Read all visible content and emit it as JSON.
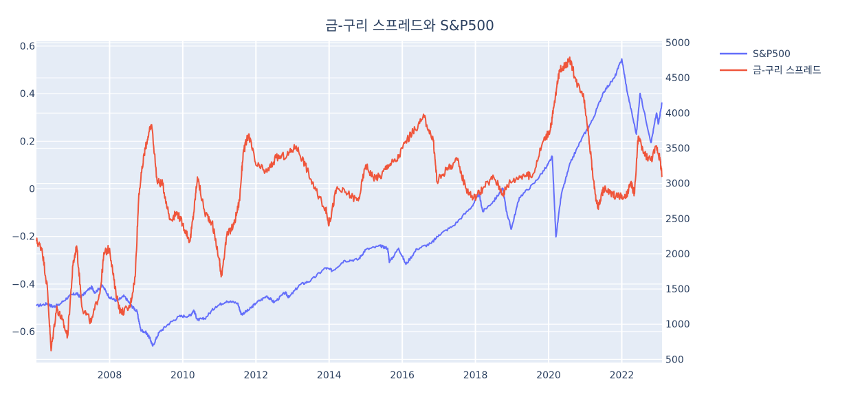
{
  "chart_data": {
    "type": "line",
    "title": "금-구리 스프레드와 S&P500",
    "xlabel": "",
    "ylabel_left": "",
    "ylabel_right": "",
    "x_range": [
      2006.0,
      2023.1
    ],
    "y_left_range": [
      -0.73,
      0.62
    ],
    "y_right_range": [
      455,
      5020
    ],
    "x_ticks": [
      {
        "value": 2008,
        "label": "2008"
      },
      {
        "value": 2010,
        "label": "2010"
      },
      {
        "value": 2012,
        "label": "2012"
      },
      {
        "value": 2014,
        "label": "2014"
      },
      {
        "value": 2016,
        "label": "2016"
      },
      {
        "value": 2018,
        "label": "2018"
      },
      {
        "value": 2020,
        "label": "2020"
      },
      {
        "value": 2022,
        "label": "2022"
      }
    ],
    "y_left_ticks": [
      {
        "value": -0.6,
        "label": "−0.6"
      },
      {
        "value": -0.4,
        "label": "−0.4"
      },
      {
        "value": -0.2,
        "label": "−0.2"
      },
      {
        "value": 0,
        "label": "0"
      },
      {
        "value": 0.2,
        "label": "0.2"
      },
      {
        "value": 0.4,
        "label": "0.4"
      },
      {
        "value": 0.6,
        "label": "0.6"
      }
    ],
    "y_right_ticks": [
      {
        "value": 500,
        "label": "500"
      },
      {
        "value": 1000,
        "label": "1000"
      },
      {
        "value": 1500,
        "label": "1500"
      },
      {
        "value": 2000,
        "label": "2000"
      },
      {
        "value": 2500,
        "label": "2500"
      },
      {
        "value": 3000,
        "label": "3000"
      },
      {
        "value": 3500,
        "label": "3500"
      },
      {
        "value": 4000,
        "label": "4000"
      },
      {
        "value": 4500,
        "label": "4500"
      },
      {
        "value": 5000,
        "label": "5000"
      }
    ],
    "grid": true,
    "legend_position": "top-right-outside",
    "series": [
      {
        "name": "S&P500",
        "axis": "right",
        "color": "#636efa",
        "points": [
          [
            2006.0,
            1260
          ],
          [
            2006.3,
            1290
          ],
          [
            2006.45,
            1250
          ],
          [
            2006.6,
            1270
          ],
          [
            2006.9,
            1400
          ],
          [
            2007.1,
            1440
          ],
          [
            2007.2,
            1380
          ],
          [
            2007.5,
            1530
          ],
          [
            2007.6,
            1450
          ],
          [
            2007.8,
            1550
          ],
          [
            2008.0,
            1380
          ],
          [
            2008.2,
            1330
          ],
          [
            2008.4,
            1400
          ],
          [
            2008.6,
            1260
          ],
          [
            2008.75,
            1180
          ],
          [
            2008.85,
            920
          ],
          [
            2009.0,
            880
          ],
          [
            2009.1,
            800
          ],
          [
            2009.18,
            690
          ],
          [
            2009.35,
            880
          ],
          [
            2009.6,
            1000
          ],
          [
            2009.9,
            1110
          ],
          [
            2010.2,
            1120
          ],
          [
            2010.3,
            1200
          ],
          [
            2010.4,
            1060
          ],
          [
            2010.6,
            1080
          ],
          [
            2010.9,
            1250
          ],
          [
            2011.2,
            1330
          ],
          [
            2011.5,
            1300
          ],
          [
            2011.6,
            1140
          ],
          [
            2011.8,
            1200
          ],
          [
            2012.0,
            1300
          ],
          [
            2012.3,
            1400
          ],
          [
            2012.5,
            1310
          ],
          [
            2012.8,
            1450
          ],
          [
            2012.9,
            1380
          ],
          [
            2013.2,
            1560
          ],
          [
            2013.5,
            1620
          ],
          [
            2013.9,
            1800
          ],
          [
            2014.1,
            1760
          ],
          [
            2014.4,
            1900
          ],
          [
            2014.8,
            1920
          ],
          [
            2015.0,
            2060
          ],
          [
            2015.4,
            2110
          ],
          [
            2015.6,
            2080
          ],
          [
            2015.65,
            1880
          ],
          [
            2015.9,
            2080
          ],
          [
            2016.1,
            1850
          ],
          [
            2016.4,
            2070
          ],
          [
            2016.8,
            2150
          ],
          [
            2017.0,
            2270
          ],
          [
            2017.4,
            2400
          ],
          [
            2017.9,
            2670
          ],
          [
            2018.1,
            2850
          ],
          [
            2018.2,
            2600
          ],
          [
            2018.5,
            2750
          ],
          [
            2018.75,
            2930
          ],
          [
            2018.85,
            2600
          ],
          [
            2018.98,
            2350
          ],
          [
            2019.2,
            2800
          ],
          [
            2019.6,
            3000
          ],
          [
            2019.95,
            3240
          ],
          [
            2020.1,
            3380
          ],
          [
            2020.2,
            2240
          ],
          [
            2020.35,
            2850
          ],
          [
            2020.6,
            3300
          ],
          [
            2020.9,
            3630
          ],
          [
            2021.2,
            3900
          ],
          [
            2021.5,
            4300
          ],
          [
            2021.8,
            4500
          ],
          [
            2022.0,
            4770
          ],
          [
            2022.15,
            4300
          ],
          [
            2022.4,
            3700
          ],
          [
            2022.5,
            4280
          ],
          [
            2022.8,
            3580
          ],
          [
            2022.95,
            4000
          ],
          [
            2023.0,
            3850
          ],
          [
            2023.1,
            4150
          ]
        ]
      },
      {
        "name": "금-구리 스프레드",
        "axis": "left",
        "color": "#ef553b",
        "points": [
          [
            2006.0,
            -0.22
          ],
          [
            2006.15,
            -0.25
          ],
          [
            2006.3,
            -0.42
          ],
          [
            2006.4,
            -0.68
          ],
          [
            2006.55,
            -0.5
          ],
          [
            2006.7,
            -0.55
          ],
          [
            2006.85,
            -0.62
          ],
          [
            2007.0,
            -0.32
          ],
          [
            2007.1,
            -0.24
          ],
          [
            2007.25,
            -0.5
          ],
          [
            2007.5,
            -0.56
          ],
          [
            2007.75,
            -0.42
          ],
          [
            2007.85,
            -0.27
          ],
          [
            2008.0,
            -0.25
          ],
          [
            2008.15,
            -0.42
          ],
          [
            2008.3,
            -0.52
          ],
          [
            2008.55,
            -0.5
          ],
          [
            2008.7,
            -0.37
          ],
          [
            2008.8,
            -0.02
          ],
          [
            2008.95,
            0.15
          ],
          [
            2009.05,
            0.22
          ],
          [
            2009.15,
            0.27
          ],
          [
            2009.3,
            0.03
          ],
          [
            2009.45,
            0.02
          ],
          [
            2009.65,
            -0.13
          ],
          [
            2009.85,
            -0.1
          ],
          [
            2010.0,
            -0.15
          ],
          [
            2010.2,
            -0.22
          ],
          [
            2010.3,
            -0.1
          ],
          [
            2010.4,
            0.05
          ],
          [
            2010.6,
            -0.1
          ],
          [
            2010.8,
            -0.14
          ],
          [
            2011.0,
            -0.3
          ],
          [
            2011.05,
            -0.37
          ],
          [
            2011.2,
            -0.2
          ],
          [
            2011.4,
            -0.15
          ],
          [
            2011.55,
            -0.05
          ],
          [
            2011.65,
            0.15
          ],
          [
            2011.8,
            0.23
          ],
          [
            2012.0,
            0.1
          ],
          [
            2012.3,
            0.07
          ],
          [
            2012.55,
            0.13
          ],
          [
            2012.85,
            0.14
          ],
          [
            2013.1,
            0.18
          ],
          [
            2013.35,
            0.1
          ],
          [
            2013.6,
            0.0
          ],
          [
            2013.9,
            -0.08
          ],
          [
            2014.0,
            -0.15
          ],
          [
            2014.2,
            0.0
          ],
          [
            2014.5,
            -0.02
          ],
          [
            2014.8,
            -0.05
          ],
          [
            2015.0,
            0.1
          ],
          [
            2015.2,
            0.05
          ],
          [
            2015.4,
            0.05
          ],
          [
            2015.6,
            0.1
          ],
          [
            2015.85,
            0.12
          ],
          [
            2016.1,
            0.2
          ],
          [
            2016.35,
            0.25
          ],
          [
            2016.6,
            0.3
          ],
          [
            2016.85,
            0.2
          ],
          [
            2016.95,
            0.03
          ],
          [
            2017.2,
            0.08
          ],
          [
            2017.5,
            0.12
          ],
          [
            2017.75,
            0.0
          ],
          [
            2017.95,
            -0.04
          ],
          [
            2018.2,
            0.0
          ],
          [
            2018.5,
            0.05
          ],
          [
            2018.75,
            -0.02
          ],
          [
            2018.95,
            0.03
          ],
          [
            2019.3,
            0.06
          ],
          [
            2019.55,
            0.05
          ],
          [
            2019.85,
            0.2
          ],
          [
            2020.05,
            0.25
          ],
          [
            2020.15,
            0.35
          ],
          [
            2020.3,
            0.5
          ],
          [
            2020.45,
            0.52
          ],
          [
            2020.6,
            0.54
          ],
          [
            2020.75,
            0.45
          ],
          [
            2020.95,
            0.4
          ],
          [
            2021.1,
            0.22
          ],
          [
            2021.25,
            0.0
          ],
          [
            2021.35,
            -0.08
          ],
          [
            2021.5,
            0.0
          ],
          [
            2021.7,
            -0.02
          ],
          [
            2021.9,
            -0.03
          ],
          [
            2022.1,
            -0.04
          ],
          [
            2022.25,
            0.02
          ],
          [
            2022.35,
            -0.02
          ],
          [
            2022.45,
            0.22
          ],
          [
            2022.6,
            0.15
          ],
          [
            2022.8,
            0.12
          ],
          [
            2022.95,
            0.18
          ],
          [
            2023.05,
            0.12
          ],
          [
            2023.1,
            0.05
          ]
        ]
      }
    ]
  }
}
